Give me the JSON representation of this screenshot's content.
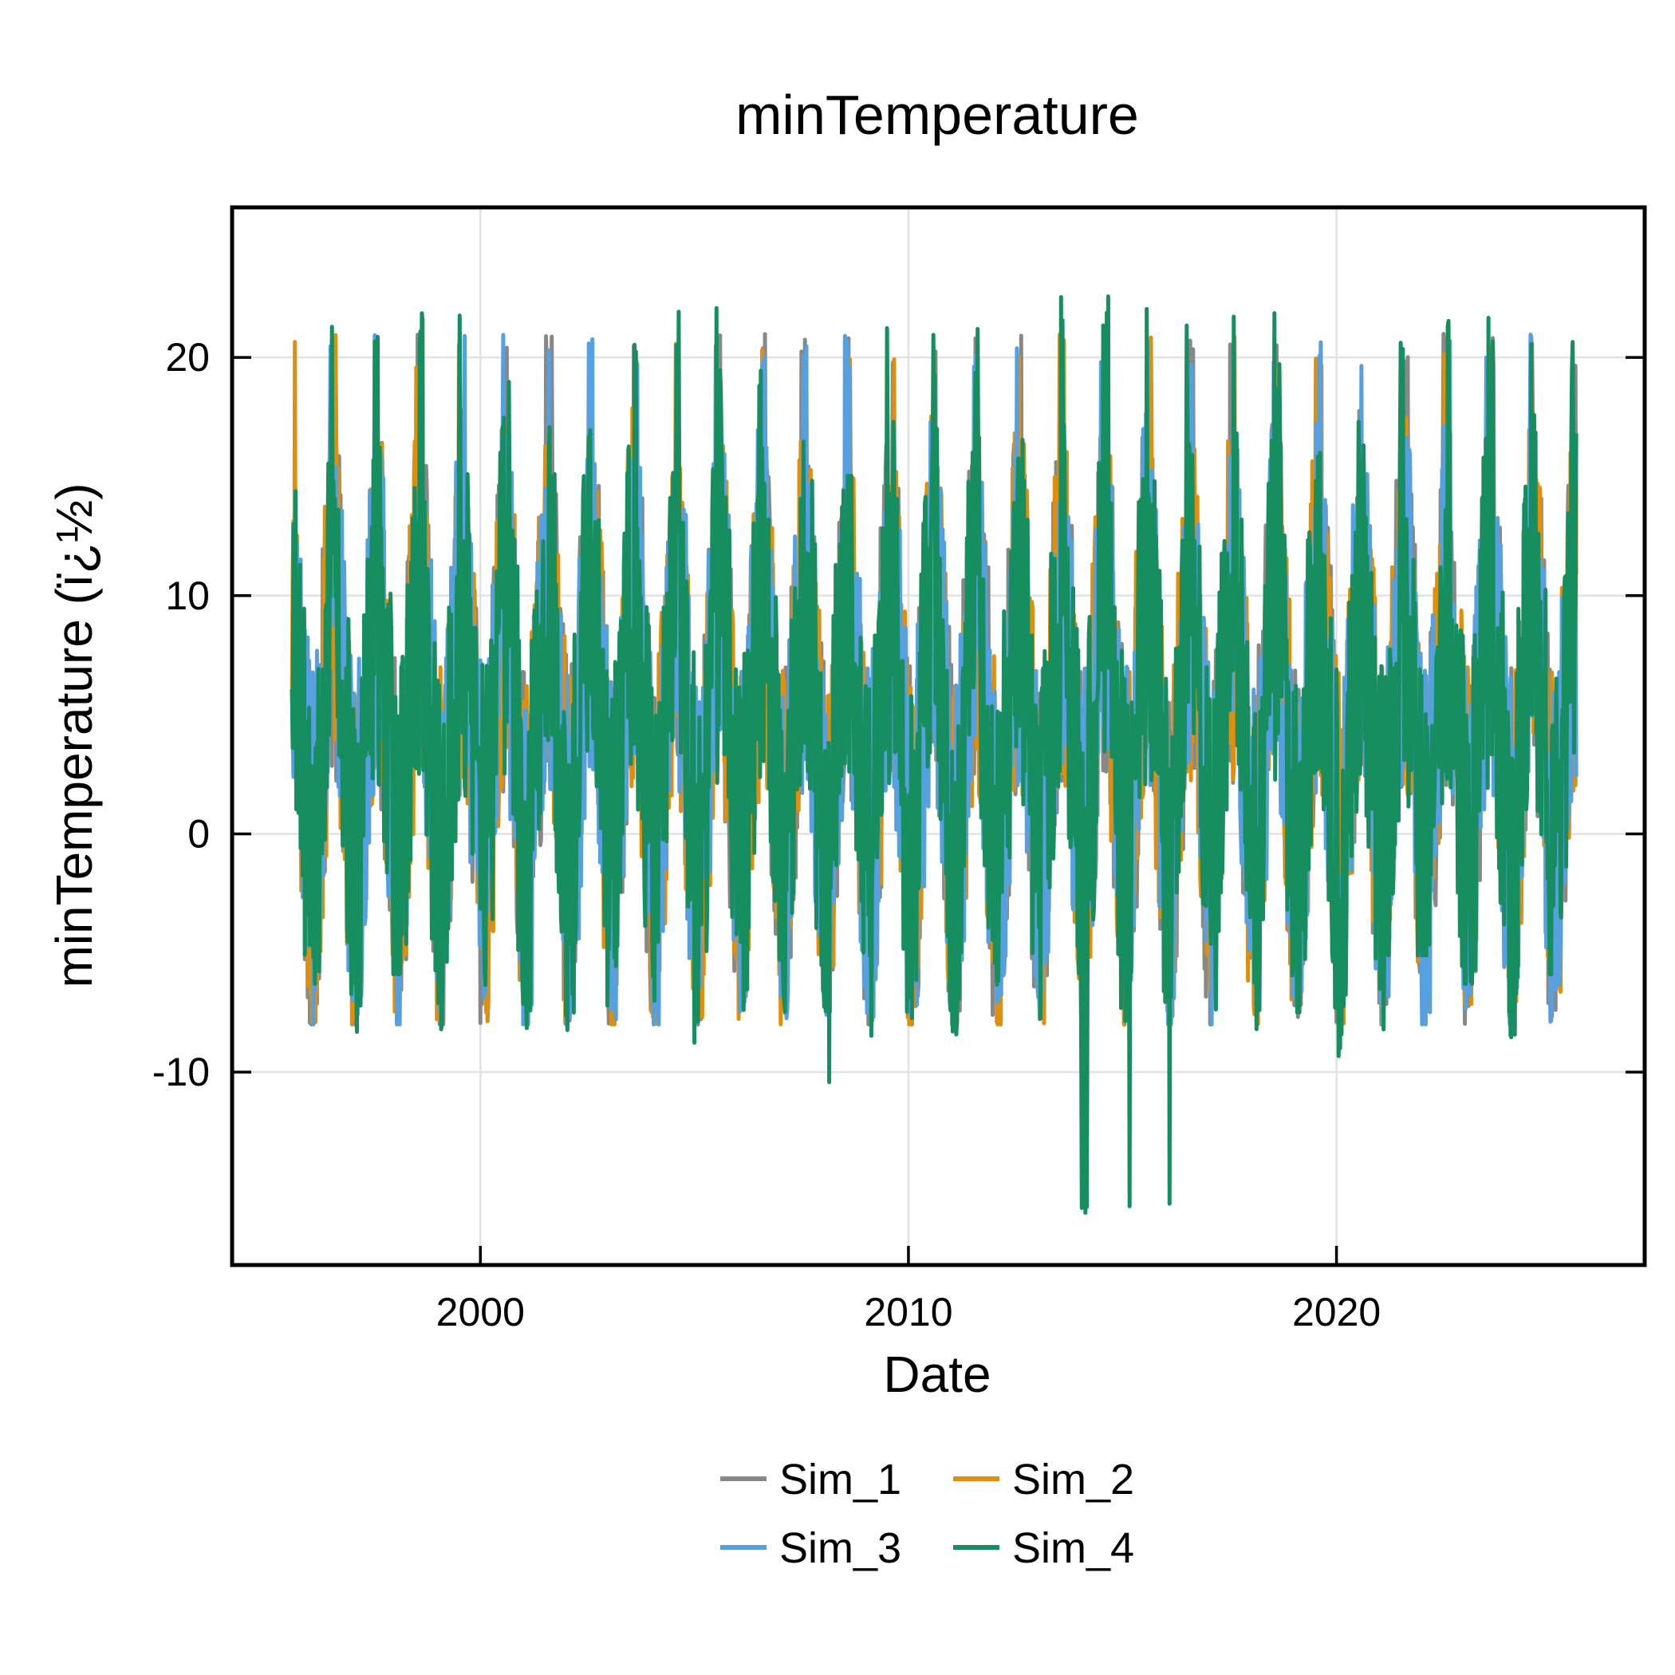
{
  "chart_data": {
    "type": "line",
    "title": "minTemperature",
    "xlabel": "Date",
    "ylabel": "minTemperature (ï¿½)",
    "xlim": [
      1994.2,
      2027.2
    ],
    "ylim": [
      -18.1,
      26.3
    ],
    "x_ticks": [
      {
        "value": 2000,
        "label": "2000"
      },
      {
        "value": 2010,
        "label": "2010"
      },
      {
        "value": 2020,
        "label": "2020"
      }
    ],
    "y_ticks": [
      {
        "value": -10,
        "label": "-10"
      },
      {
        "value": 0,
        "label": "0"
      },
      {
        "value": 10,
        "label": "10"
      },
      {
        "value": 20,
        "label": "20"
      }
    ],
    "grid": true,
    "legend_position": "bottom",
    "series": [
      {
        "name": "Sim_1",
        "color": "#888888",
        "x_start": 1995.6,
        "x_end": 2025.6,
        "seed": 11
      },
      {
        "name": "Sim_2",
        "color": "#E08E0B",
        "x_start": 1995.6,
        "x_end": 2025.6,
        "seed": 23
      },
      {
        "name": "Sim_3",
        "color": "#56A0E0",
        "x_start": 1995.6,
        "x_end": 2025.6,
        "seed": 37
      },
      {
        "name": "Sim_4",
        "color": "#168E60",
        "x_start": 1995.6,
        "x_end": 2025.6,
        "seed": 53,
        "annual_peaks": [
          22.2,
          20.8,
          21.0,
          21.9,
          18.8,
          20.3,
          24.3,
          22.5,
          20.6,
          22.4,
          19.8,
          20.5,
          22.0,
          22.6,
          22.0,
          20.6,
          22.6,
          22.6,
          22.6,
          22.6,
          22.4,
          22.4,
          22.4,
          20.0,
          20.7,
          20.7,
          20.8
        ],
        "annual_troughs": [
          -6.3,
          -9.6,
          -5.9,
          -11.6,
          -8.1,
          -11.5,
          -10.4,
          -8.7,
          -11.7,
          -10.0,
          -8.4,
          -8.0,
          -10.6,
          -8.5,
          -16.3,
          -8.8,
          -6.9,
          -11.7,
          -16.3,
          -16.3,
          -16.3,
          -8.9,
          -9.0,
          -7.5,
          -9.6,
          -9.1,
          -5.1
        ]
      }
    ]
  }
}
